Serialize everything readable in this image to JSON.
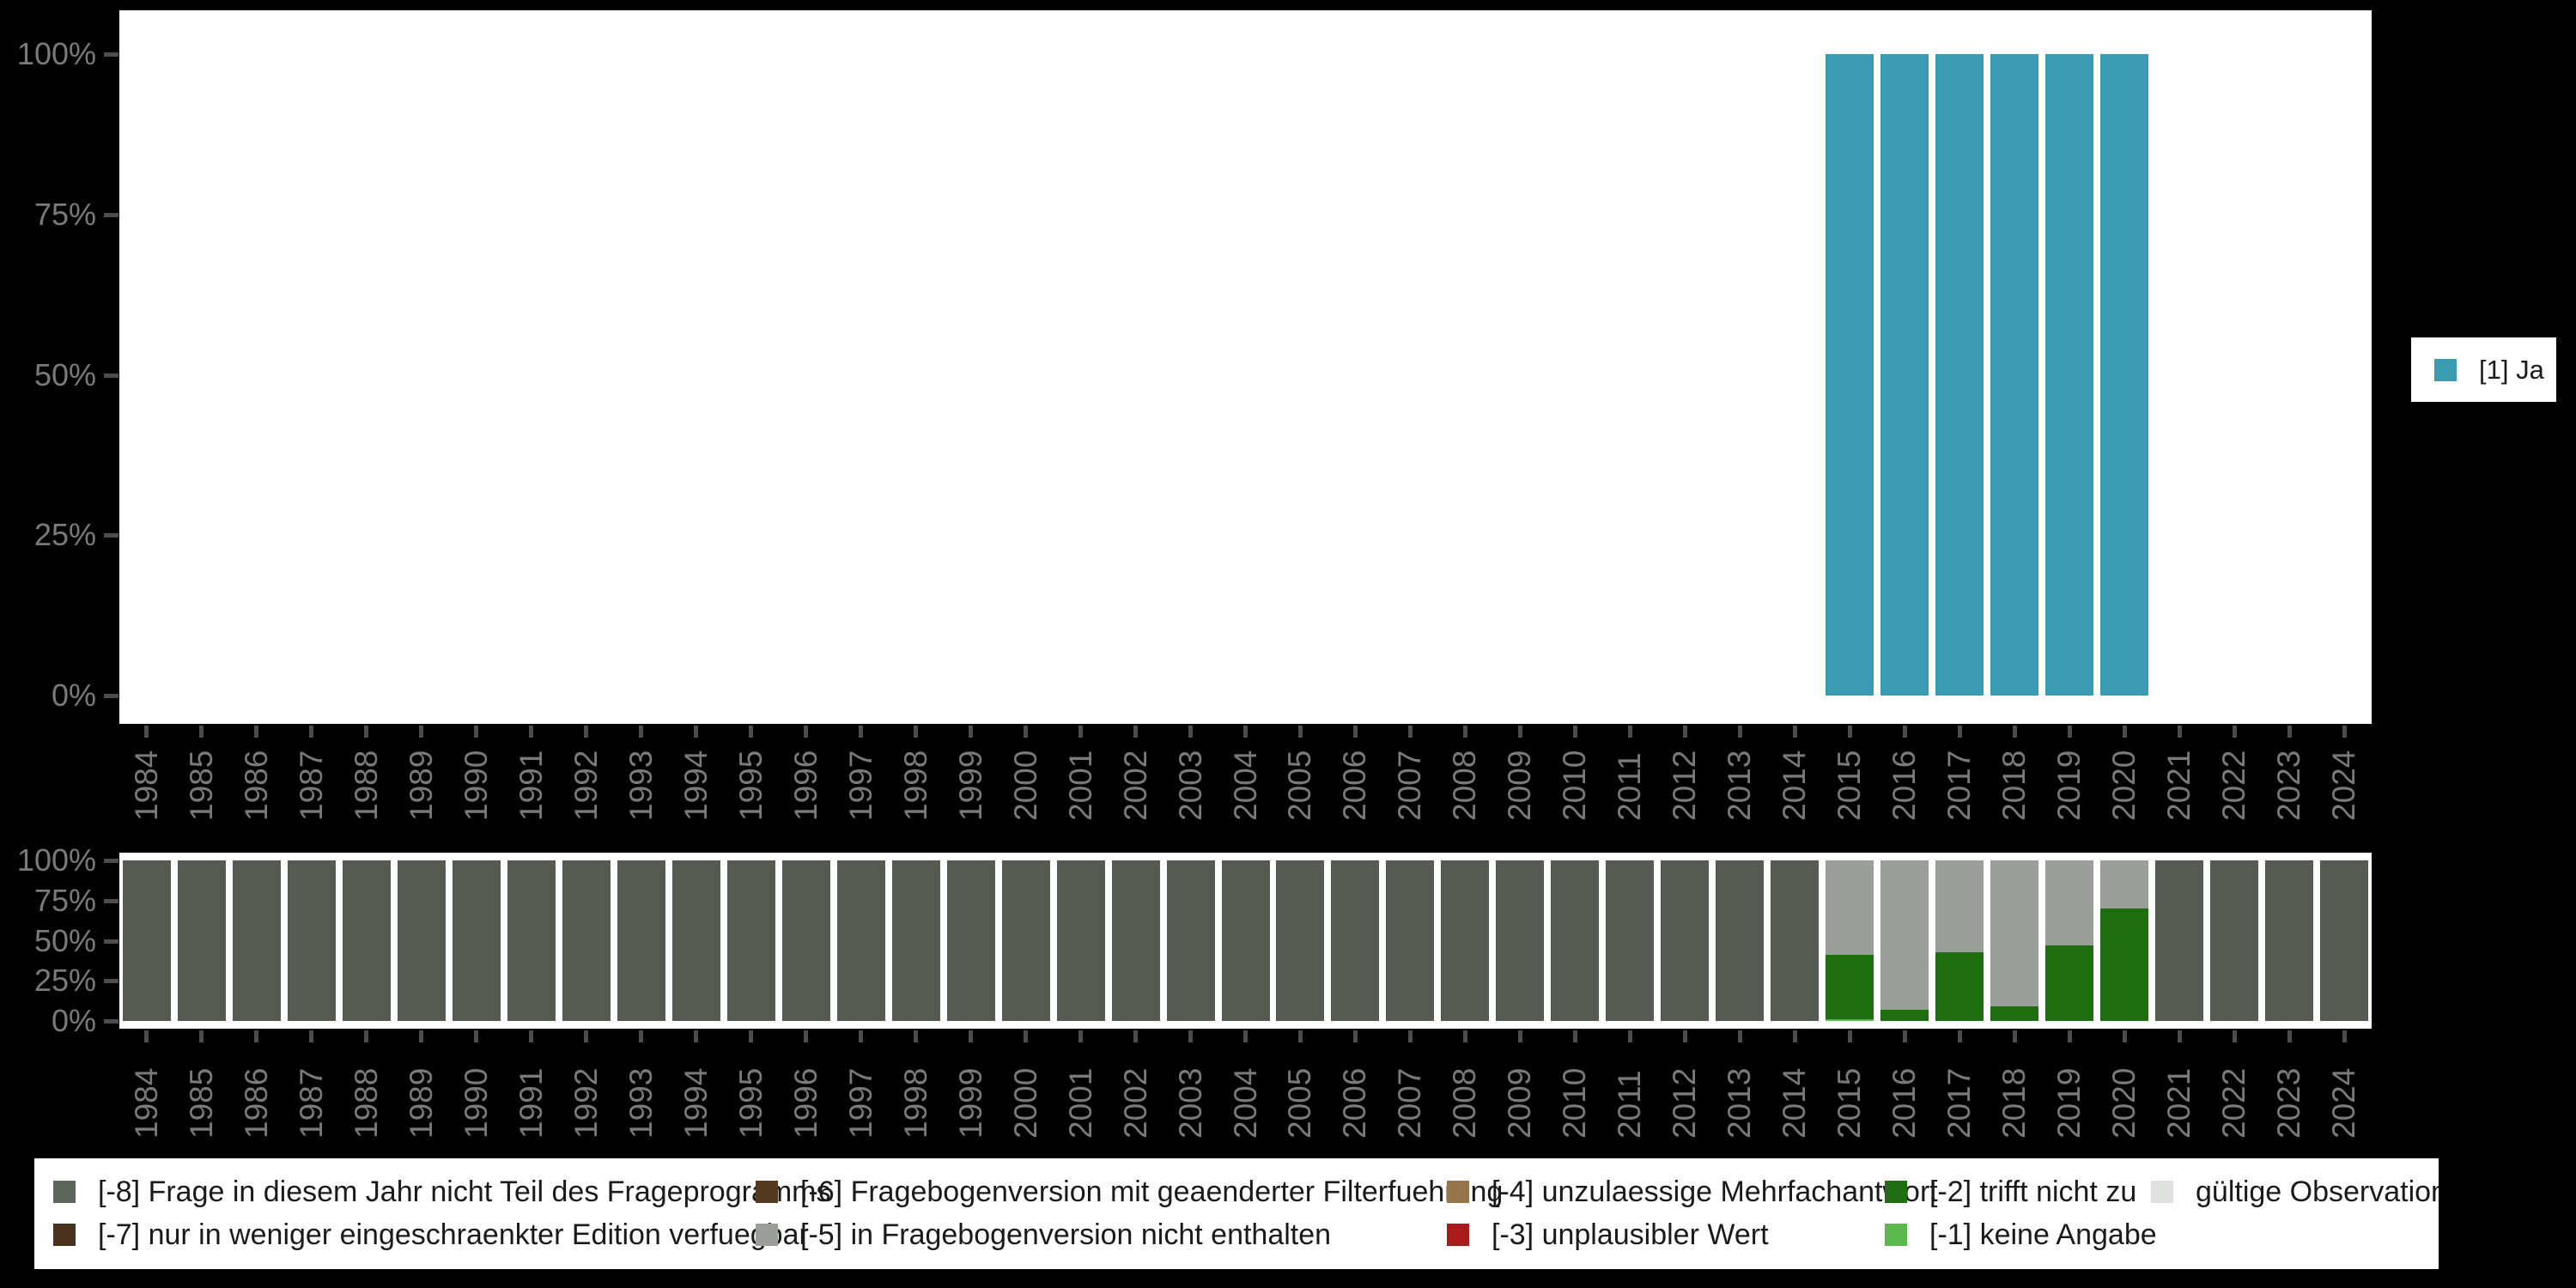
{
  "colors": {
    "background": "#000000",
    "plot_background": "#ffffff",
    "axis_text": "#7a7a7a",
    "tick": "#4d4d4d",
    "legend_text": "#1a1a1a"
  },
  "chart_data": [
    {
      "id": "answer-frequencies",
      "type": "bar",
      "stacked": false,
      "categories": [
        1984,
        1985,
        1986,
        1987,
        1988,
        1989,
        1990,
        1991,
        1992,
        1993,
        1994,
        1995,
        1996,
        1997,
        1998,
        1999,
        2000,
        2001,
        2002,
        2003,
        2004,
        2005,
        2006,
        2007,
        2008,
        2009,
        2010,
        2011,
        2012,
        2013,
        2014,
        2015,
        2016,
        2017,
        2018,
        2019,
        2020,
        2021,
        2022,
        2023,
        2024
      ],
      "series": [
        {
          "name": "[1] Ja",
          "color": "#3a9bb1",
          "values": [
            null,
            null,
            null,
            null,
            null,
            null,
            null,
            null,
            null,
            null,
            null,
            null,
            null,
            null,
            null,
            null,
            null,
            null,
            null,
            null,
            null,
            null,
            null,
            null,
            null,
            null,
            null,
            null,
            null,
            null,
            null,
            100,
            100,
            100,
            100,
            100,
            100,
            null,
            null,
            null,
            null
          ]
        }
      ],
      "ylim": [
        0,
        100
      ],
      "ytick_values": [
        0,
        25,
        50,
        75,
        100
      ],
      "yticks": [
        "0%",
        "25%",
        "50%",
        "75%",
        "100%"
      ],
      "grid": false,
      "legend": {
        "position": "right",
        "items": [
          {
            "key": "ja",
            "label": "[1] Ja",
            "color": "#3a9bb1"
          }
        ]
      }
    },
    {
      "id": "missing-codes",
      "type": "bar",
      "stacked": true,
      "categories": [
        1984,
        1985,
        1986,
        1987,
        1988,
        1989,
        1990,
        1991,
        1992,
        1993,
        1994,
        1995,
        1996,
        1997,
        1998,
        1999,
        2000,
        2001,
        2002,
        2003,
        2004,
        2005,
        2006,
        2007,
        2008,
        2009,
        2010,
        2011,
        2012,
        2013,
        2014,
        2015,
        2016,
        2017,
        2018,
        2019,
        2020,
        2021,
        2022,
        2023,
        2024
      ],
      "series": [
        {
          "name": "[-1] keine Angabe",
          "color": "#5bb84c",
          "values": [
            0,
            0,
            0,
            0,
            0,
            0,
            0,
            0,
            0,
            0,
            0,
            0,
            0,
            0,
            0,
            0,
            0,
            0,
            0,
            0,
            0,
            0,
            0,
            0,
            0,
            0,
            0,
            0,
            0,
            0,
            0,
            1,
            0,
            0,
            0,
            0,
            0,
            0,
            0,
            0,
            0
          ]
        },
        {
          "name": "[-2] trifft nicht zu",
          "color": "#206d12",
          "values": [
            0,
            0,
            0,
            0,
            0,
            0,
            0,
            0,
            0,
            0,
            0,
            0,
            0,
            0,
            0,
            0,
            0,
            0,
            0,
            0,
            0,
            0,
            0,
            0,
            0,
            0,
            0,
            0,
            0,
            0,
            0,
            40,
            7,
            43,
            9,
            47,
            70,
            0,
            0,
            0,
            0
          ]
        },
        {
          "name": "[-5] in Fragebogenversion nicht enthalten",
          "color": "#9aa099",
          "values": [
            0,
            0,
            0,
            0,
            0,
            0,
            0,
            0,
            0,
            0,
            0,
            0,
            0,
            0,
            0,
            0,
            0,
            0,
            0,
            0,
            0,
            0,
            0,
            0,
            0,
            0,
            0,
            0,
            0,
            0,
            0,
            59,
            93,
            57,
            91,
            53,
            30,
            0,
            0,
            0,
            0
          ]
        },
        {
          "name": "[-8] Frage in diesem Jahr nicht Teil des Frageprogramms",
          "color": "#555b51",
          "values": [
            100,
            100,
            100,
            100,
            100,
            100,
            100,
            100,
            100,
            100,
            100,
            100,
            100,
            100,
            100,
            100,
            100,
            100,
            100,
            100,
            100,
            100,
            100,
            100,
            100,
            100,
            100,
            100,
            100,
            100,
            100,
            0,
            0,
            0,
            0,
            0,
            0,
            100,
            100,
            100,
            100
          ]
        }
      ],
      "ylim": [
        0,
        100
      ],
      "ytick_values": [
        0,
        25,
        50,
        75,
        100
      ],
      "yticks": [
        "0%",
        "25%",
        "50%",
        "75%",
        "100%"
      ],
      "grid": false,
      "legend": {
        "position": "bottom",
        "rows": 2,
        "items": [
          {
            "key": "m8",
            "label": "[-8] Frage in diesem Jahr nicht Teil des Frageprogramms",
            "color": "#5e655b",
            "row": 0,
            "col": 0
          },
          {
            "key": "m7",
            "label": "[-7] nur in weniger eingeschraenkter Edition verfuegbar",
            "color": "#49331f",
            "row": 1,
            "col": 0
          },
          {
            "key": "m6",
            "label": "[-6] Fragebogenversion mit geaenderter Filterfuehrung",
            "color": "#543a20",
            "row": 0,
            "col": 1
          },
          {
            "key": "m5",
            "label": "[-5] in Fragebogenversion nicht enthalten",
            "color": "#9aa099",
            "row": 1,
            "col": 1
          },
          {
            "key": "m4",
            "label": "[-4] unzulaessige Mehrfachantwort",
            "color": "#96754d",
            "row": 0,
            "col": 2
          },
          {
            "key": "m3",
            "label": "[-3] unplausibler Wert",
            "color": "#a91b1b",
            "row": 1,
            "col": 2
          },
          {
            "key": "m2",
            "label": "[-2] trifft nicht zu",
            "color": "#206d12",
            "row": 0,
            "col": 3
          },
          {
            "key": "m1",
            "label": "[-1] keine Angabe",
            "color": "#5bb84c",
            "row": 1,
            "col": 3
          },
          {
            "key": "valid",
            "label": "gültige Observationen",
            "color": "#dde2dc",
            "row": 0,
            "col": 4
          }
        ]
      }
    }
  ]
}
